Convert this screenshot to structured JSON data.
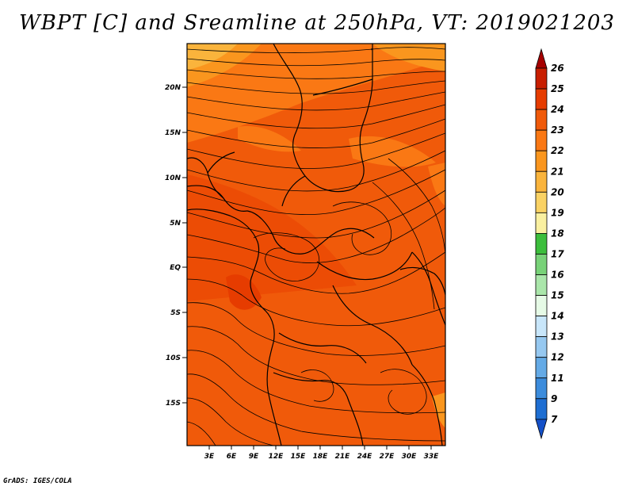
{
  "title": "WBPT [C] and Sreamline at 250hPa, VT: 2019021203",
  "credit": "GrADS: IGES/COLA",
  "map": {
    "lat_labels": [
      "20N",
      "15N",
      "10N",
      "5N",
      "EQ",
      "5S",
      "10S",
      "15S"
    ],
    "lon_labels": [
      "3E",
      "6E",
      "9E",
      "12E",
      "15E",
      "18E",
      "21E",
      "24E",
      "27E",
      "30E",
      "33E"
    ]
  },
  "colorbar": {
    "levels": [
      "26",
      "25",
      "24",
      "23",
      "22",
      "21",
      "20",
      "19",
      "18",
      "17",
      "16",
      "15",
      "14",
      "13",
      "12",
      "11",
      "9",
      "7"
    ],
    "colors": [
      "#a50000",
      "#c81e00",
      "#e63c00",
      "#f05a0a",
      "#fa7814",
      "#fa961e",
      "#fab43c",
      "#fad264",
      "#faf0a0",
      "#3cbe3c",
      "#78d278",
      "#aae6aa",
      "#e6fae6",
      "#c8e6fa",
      "#96c8f0",
      "#64aae6",
      "#3c8cdc",
      "#1e6ed2",
      "#1450c8"
    ]
  }
}
